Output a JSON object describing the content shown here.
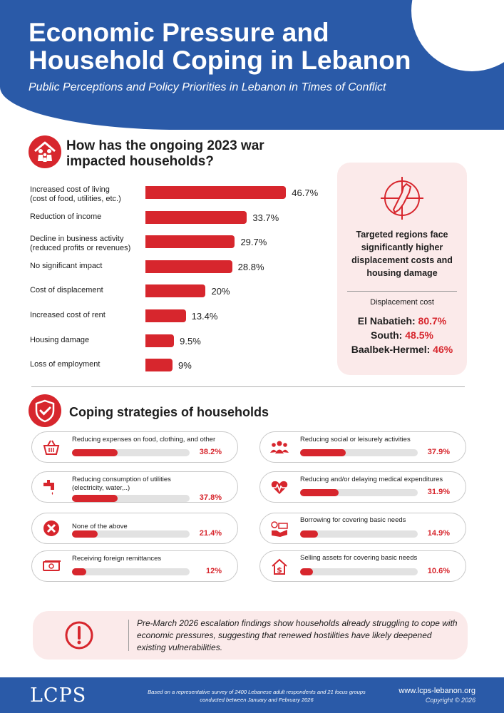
{
  "header": {
    "title": "Economic Pressure and Household Coping in Lebanon",
    "subtitle": "Public Perceptions and Policy Priorities in Lebanon in Times of Conflict"
  },
  "impact_section": {
    "title": "How has the ongoing 2023 war impacted households?"
  },
  "chart_data": [
    {
      "type": "bar",
      "title": "How has the ongoing 2023 war impacted households?",
      "orientation": "horizontal",
      "categories": [
        "Increased cost of living (cost of food, utilities, etc.)",
        "Reduction of income",
        "Decline in business activity (reduced profits or revenues)",
        "No significant impact",
        "Cost of displacement",
        "Increased cost of rent",
        "Housing damage",
        "Loss of employment"
      ],
      "values": [
        46.7,
        33.7,
        29.7,
        28.8,
        20,
        13.4,
        9.5,
        9
      ],
      "labels": [
        "46.7%",
        "33.7%",
        "29.7%",
        "28.8%",
        "20%",
        "13.4%",
        "9.5%",
        "9%"
      ],
      "xlim": [
        0,
        50
      ]
    },
    {
      "type": "bar",
      "title": "Coping strategies of households",
      "orientation": "horizontal",
      "categories": [
        "Reducing expenses on food, clothing, and other",
        "Reducing consumption of utilities (electricity, water,..)",
        "None of the above",
        "Receiving foreign remittances",
        "Reducing social or leisurely activities",
        "Reducing and/or delaying medical expenditures",
        "Borrowing for covering basic needs",
        "Selling assets for covering basic needs"
      ],
      "values": [
        38.2,
        37.8,
        21.4,
        12,
        37.9,
        31.9,
        14.9,
        10.6
      ],
      "labels": [
        "38.2%",
        "37.8%",
        "21.4%",
        "12%",
        "37.9%",
        "31.9%",
        "14.9%",
        "10.6%"
      ],
      "xlim": [
        0,
        100
      ]
    }
  ],
  "bar_lines": [
    [
      "Increased cost of living",
      "(cost of food, utilities, etc.)"
    ],
    [
      "Reduction of income"
    ],
    [
      "Decline in business activity",
      "(reduced profits or revenues)"
    ],
    [
      "No significant impact"
    ],
    [
      "Cost of displacement"
    ],
    [
      "Increased cost of rent"
    ],
    [
      "Housing damage"
    ],
    [
      "Loss of employment"
    ]
  ],
  "side_card": {
    "headline": "Targeted regions face significantly higher displacement costs and housing damage",
    "sublabel": "Displacement cost",
    "regions": [
      {
        "name": "El Nabatieh:",
        "value": "80.7%"
      },
      {
        "name": "South:",
        "value": "48.5%"
      },
      {
        "name": "Baalbek-Hermel:",
        "value": "46%"
      }
    ]
  },
  "coping_section": {
    "title": "Coping strategies of households"
  },
  "coping_lines": [
    [
      "Reducing expenses on food, clothing, and other"
    ],
    [
      "Reducing consumption of utilities",
      "(electricity, water,..)"
    ],
    [
      "None of the above"
    ],
    [
      "Receiving foreign remittances"
    ],
    [
      "Reducing social or leisurely activities"
    ],
    [
      "Reducing and/or delaying medical expenditures"
    ],
    [
      "Borrowing for covering basic needs"
    ],
    [
      "Selling assets for covering basic needs"
    ]
  ],
  "coping_icons": [
    "basket-icon",
    "faucet-icon",
    "cross-circle-icon",
    "banknote-icon",
    "people-icon",
    "heartbeat-icon",
    "borrow-hand-icon",
    "house-dollar-icon"
  ],
  "note": {
    "text": "Pre-March 2026 escalation findings show households already struggling to cope with economic pressures, suggesting that renewed hostilities have likely deepened existing vulnerabilities."
  },
  "footer": {
    "logo": "LCPS",
    "note": "Based on a representative survey of 2400 Lebanese adult respondents and 21 focus groups conducted between January and February 2026",
    "url": "www.lcps-lebanon.org",
    "copyright": "Copyright © 2026"
  },
  "colors": {
    "primary_blue": "#2a5aa8",
    "accent_red": "#d7262d",
    "card_pink": "#fbeaea",
    "track_gray": "#e2e2e2"
  }
}
